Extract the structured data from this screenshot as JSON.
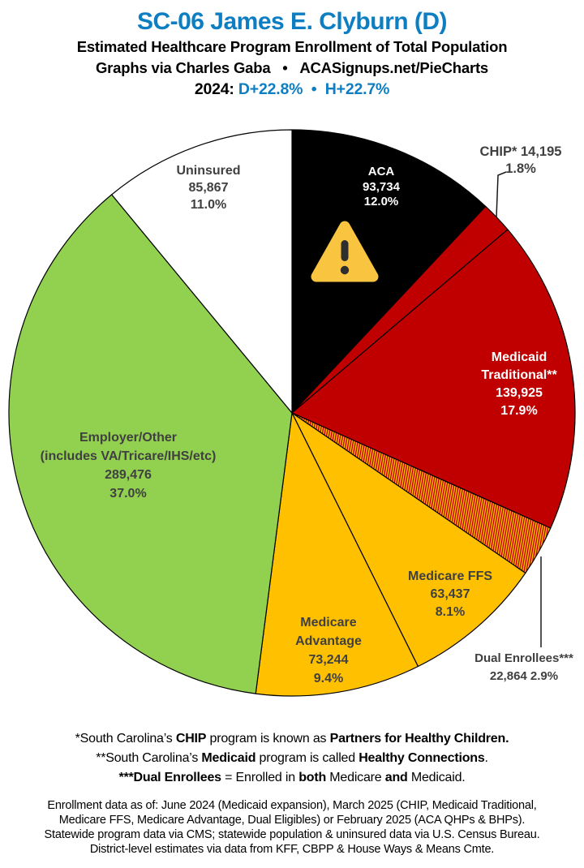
{
  "header": {
    "title": "SC-06 James E. Clyburn (D)",
    "subtitle1": "Estimated Healthcare Program Enrollment of Total Population",
    "subtitle2": "Graphs via Charles Gaba   •   ACASignups.net/PieCharts",
    "year_line": {
      "runs": [
        {
          "text": "2024: ",
          "color": "#000000"
        },
        {
          "text": "D+22.8%",
          "color": "#0D7EC2"
        },
        {
          "text": "  •  ",
          "color": "#0D7EC2"
        },
        {
          "text": "H+22.7%",
          "color": "#0D7EC2"
        }
      ]
    }
  },
  "colors": {
    "title_blue": "#0D7EC2",
    "pie_black": "#000000",
    "pie_red": "#C00000",
    "pie_gold": "#FFC000",
    "pie_green": "#92D050",
    "pie_white": "#FFFFFF",
    "label_dark": "#404040",
    "label_light": "#FFFFFF",
    "warning_yellow": "#F9C440",
    "hatch_stripe_red": "#C00000",
    "hatch_stripe_gold": "#FFC000"
  },
  "icons": {
    "warning_triangle": "⚠"
  },
  "chart_data": {
    "type": "pie",
    "title": "SC-06 James E. Clyburn (D) — Estimated Healthcare Program Enrollment of Total Population (2024)",
    "units": "people",
    "start_angle_deg": 0,
    "direction": "clockwise",
    "legend": "none",
    "slices": [
      {
        "id": "aca",
        "name": "ACA",
        "value": 93734,
        "value_text": "93,734",
        "pct": 12.0,
        "pct_text": "12.0%",
        "color": "#000000",
        "text_color": "#FFFFFF",
        "outside": false,
        "label_lines": [
          "ACA",
          "93,734",
          "12.0%"
        ]
      },
      {
        "id": "chip",
        "name": "CHIP*",
        "value": 14195,
        "value_text": "14,195",
        "pct": 1.8,
        "pct_text": "1.8%",
        "color": "#C00000",
        "text_color": "#404040",
        "outside": true,
        "label_lines": [
          "CHIP* 14,195",
          "1.8%"
        ]
      },
      {
        "id": "medicaid",
        "name": "Medicaid Traditional**",
        "value": 139925,
        "value_text": "139,925",
        "pct": 17.9,
        "pct_text": "17.9%",
        "color": "#C00000",
        "text_color": "#FFFFFF",
        "outside": false,
        "label_lines": [
          "Medicaid",
          "Traditional**",
          "139,925",
          "17.9%"
        ]
      },
      {
        "id": "dual",
        "name": "Dual Enrollees***",
        "value": 22864,
        "value_text": "22,864",
        "pct": 2.9,
        "pct_text": "2.9%",
        "color": "hatch",
        "text_color": "#404040",
        "outside": true,
        "label_lines": [
          "Dual Enrollees***",
          "22,864 2.9%"
        ]
      },
      {
        "id": "ffs",
        "name": "Medicare FFS",
        "value": 63437,
        "value_text": "63,437",
        "pct": 8.1,
        "pct_text": "8.1%",
        "color": "#FFC000",
        "text_color": "#404040",
        "outside": false,
        "label_lines": [
          "Medicare FFS",
          "63,437",
          "8.1%"
        ]
      },
      {
        "id": "madv",
        "name": "Medicare Advantage",
        "value": 73244,
        "value_text": "73,244",
        "pct": 9.4,
        "pct_text": "9.4%",
        "color": "#FFC000",
        "text_color": "#404040",
        "outside": false,
        "label_lines": [
          "Medicare",
          "Advantage",
          "73,244",
          "9.4%"
        ]
      },
      {
        "id": "employer",
        "name": "Employer/Other (includes VA/Tricare/IHS/etc)",
        "value": 289476,
        "value_text": "289,476",
        "pct": 37.0,
        "pct_text": "37.0%",
        "color": "#92D050",
        "text_color": "#404040",
        "outside": false,
        "label_lines": [
          "Employer/Other",
          "(includes VA/Tricare/IHS/etc)",
          "289,476",
          "37.0%"
        ]
      },
      {
        "id": "uninsured",
        "name": "Uninsured",
        "value": 85867,
        "value_text": "85,867",
        "pct": 11.0,
        "pct_text": "11.0%",
        "color": "#FFFFFF",
        "text_color": "#404040",
        "outside": false,
        "label_lines": [
          "Uninsured",
          "85,867",
          "11.0%"
        ]
      }
    ]
  },
  "footnotes": {
    "lines": [
      {
        "runs": [
          {
            "text": "*South Carolina’s ",
            "bold": false
          },
          {
            "text": "CHIP",
            "bold": true
          },
          {
            "text": " program is known as ",
            "bold": false
          },
          {
            "text": "Partners for Healthy Children.",
            "bold": true
          }
        ]
      },
      {
        "runs": [
          {
            "text": "**South Carolina’s ",
            "bold": false
          },
          {
            "text": "Medicaid",
            "bold": true
          },
          {
            "text": " program is called ",
            "bold": false
          },
          {
            "text": "Healthy Connections",
            "bold": true
          },
          {
            "text": ".",
            "bold": false
          }
        ]
      },
      {
        "runs": [
          {
            "text": "***Dual Enrollees",
            "bold": true
          },
          {
            "text": " = Enrolled in ",
            "bold": false
          },
          {
            "text": "both",
            "bold": true
          },
          {
            "text": " Medicare ",
            "bold": false
          },
          {
            "text": "and",
            "bold": true
          },
          {
            "text": " Medicaid.",
            "bold": false
          }
        ]
      }
    ]
  },
  "fineprint": {
    "lines": [
      "Enrollment data as of: June 2024 (Medicaid expansion), March 2025 (CHIP, Medicaid Traditional,",
      "Medicare FFS, Medicare Advantage, Dual Eligibles) or February 2025 (ACA QHPs & BHPs).",
      "Statewide program data via CMS; statewide population & uninsured data via U.S. Census Bureau.",
      "District-level estimates via data from KFF, CBPP & House Ways & Means Cmte."
    ]
  }
}
